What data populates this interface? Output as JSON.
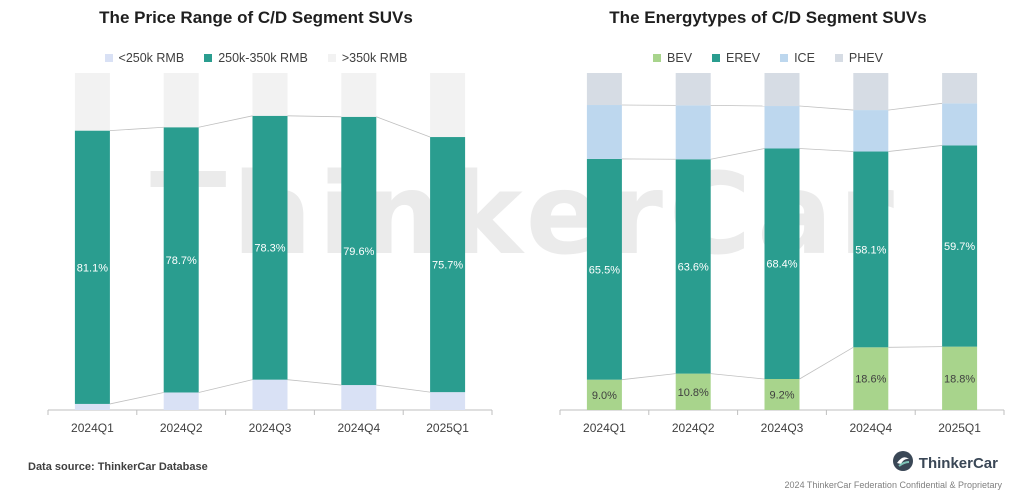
{
  "watermark": "ThinkerCar",
  "footer": {
    "source": "Data source: ThinkerCar Database",
    "brand": "ThinkerCar",
    "confidential": "2024 ThinkerCar Federation Confidential & Proprietary"
  },
  "colors": {
    "low": "#d9e1f5",
    "mid": "#2a9d8f",
    "high": "#f2f2f2",
    "bev": "#a8d48c",
    "erev": "#2a9d8f",
    "ice": "#bdd7ee",
    "phev": "#d6dce4"
  },
  "chart_data": [
    {
      "type": "bar",
      "stacked": true,
      "title": "The Price Range of C/D Segment SUVs",
      "categories": [
        "2024Q1",
        "2024Q2",
        "2024Q3",
        "2024Q4",
        "2025Q1"
      ],
      "ylim": [
        0,
        100
      ],
      "legend_position": "top",
      "series": [
        {
          "name": "<250k RMB",
          "values": [
            1.8,
            5.2,
            9.0,
            7.4,
            5.3
          ],
          "color": "#d9e1f5"
        },
        {
          "name": "250k-350k RMB",
          "values": [
            81.1,
            78.7,
            78.3,
            79.6,
            75.7
          ],
          "color": "#2a9d8f",
          "labels": [
            "81.1%",
            "78.7%",
            "78.3%",
            "79.6%",
            "75.7%"
          ]
        },
        {
          "name": ">350k RMB",
          "values": [
            17.1,
            16.1,
            12.7,
            13.0,
            19.0
          ],
          "color": "#f2f2f2"
        }
      ]
    },
    {
      "type": "bar",
      "stacked": true,
      "title": "The Energytypes of C/D Segment SUVs",
      "categories": [
        "2024Q1",
        "2024Q2",
        "2024Q3",
        "2024Q4",
        "2025Q1"
      ],
      "ylim": [
        0,
        100
      ],
      "legend_position": "top",
      "series": [
        {
          "name": "BEV",
          "values": [
            9.0,
            10.8,
            9.2,
            18.6,
            18.8
          ],
          "color": "#a8d48c",
          "labels": [
            "9.0%",
            "10.8%",
            "9.2%",
            "18.6%",
            "18.8%"
          ]
        },
        {
          "name": "EREV",
          "values": [
            65.5,
            63.6,
            68.4,
            58.1,
            59.7
          ],
          "color": "#2a9d8f",
          "labels": [
            "65.5%",
            "63.6%",
            "68.4%",
            "58.1%",
            "59.7%"
          ]
        },
        {
          "name": "ICE",
          "values": [
            16.0,
            16.0,
            12.6,
            12.3,
            12.5
          ],
          "color": "#bdd7ee"
        },
        {
          "name": "PHEV",
          "values": [
            9.5,
            9.6,
            9.8,
            11.0,
            9.0
          ],
          "color": "#d6dce4"
        }
      ]
    }
  ]
}
